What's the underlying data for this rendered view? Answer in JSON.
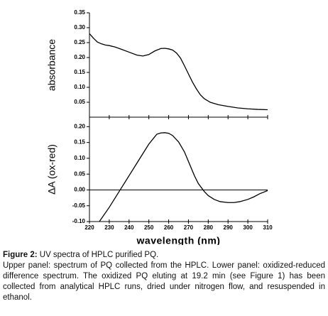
{
  "chart_data": [
    {
      "type": "line",
      "ylabel": "absorbance",
      "x": [
        220,
        222,
        224,
        226,
        228,
        230,
        233,
        236,
        240,
        244,
        247,
        250,
        253,
        256,
        258,
        260,
        262,
        264,
        266,
        268,
        270,
        272,
        274,
        276,
        278,
        281,
        285,
        290,
        295,
        300,
        305,
        310
      ],
      "values": [
        0.28,
        0.265,
        0.252,
        0.246,
        0.242,
        0.24,
        0.235,
        0.228,
        0.218,
        0.208,
        0.205,
        0.21,
        0.222,
        0.23,
        0.231,
        0.229,
        0.225,
        0.215,
        0.198,
        0.172,
        0.145,
        0.118,
        0.095,
        0.075,
        0.062,
        0.05,
        0.042,
        0.036,
        0.031,
        0.028,
        0.026,
        0.025
      ],
      "color": "#000000",
      "xlim": [
        220,
        310
      ],
      "ylim": [
        0,
        0.35
      ],
      "yticks": [
        0.05,
        {
          "value": 0.1,
          "label": "0.10"
        },
        0.15,
        {
          "value": 0.2,
          "label": "0.20"
        },
        0.25,
        {
          "value": 0.3,
          "label": "0.30"
        },
        0.35
      ]
    },
    {
      "type": "line",
      "ylabel": "ΔA (ox-red)",
      "xlabel": "wavelength (nm)",
      "x": [
        225,
        230,
        235,
        240,
        245,
        250,
        254,
        256,
        258,
        260,
        262,
        265,
        268,
        270,
        273,
        275,
        278,
        280,
        283,
        286,
        290,
        293,
        296,
        300,
        303,
        306,
        310
      ],
      "values": [
        -0.1,
        -0.055,
        -0.005,
        0.045,
        0.095,
        0.145,
        0.176,
        0.18,
        0.181,
        0.179,
        0.172,
        0.152,
        0.12,
        0.09,
        0.045,
        0.02,
        -0.005,
        -0.018,
        -0.03,
        -0.037,
        -0.04,
        -0.04,
        -0.037,
        -0.03,
        -0.022,
        -0.012,
        -0.002
      ],
      "color": "#000000",
      "xlim": [
        220,
        310
      ],
      "ylim": [
        -0.1,
        0.23
      ],
      "xticks": [
        220,
        230,
        240,
        250,
        260,
        270,
        280,
        290,
        300,
        310
      ],
      "yticks": [
        {
          "value": -0.1,
          "label": "-0.10"
        },
        -0.05,
        {
          "value": 0,
          "label": "0.00"
        },
        0.05,
        {
          "value": 0.1,
          "label": "0.10"
        },
        0.15,
        {
          "value": 0.2,
          "label": "0.20"
        }
      ],
      "zero_line": true
    }
  ],
  "caption": {
    "label": "Figure 2:",
    "title": "UV spectra of HPLC purified PQ.",
    "text": "Upper panel: spectrum of PQ collected from the HPLC. Lower panel: oxidized-reduced difference spectrum. The oxidized PQ eluting at 19.2 min (see Figure 1) has been collected from analytical HPLC runs, dried under nitrogen flow, and resuspended in ethanol."
  }
}
